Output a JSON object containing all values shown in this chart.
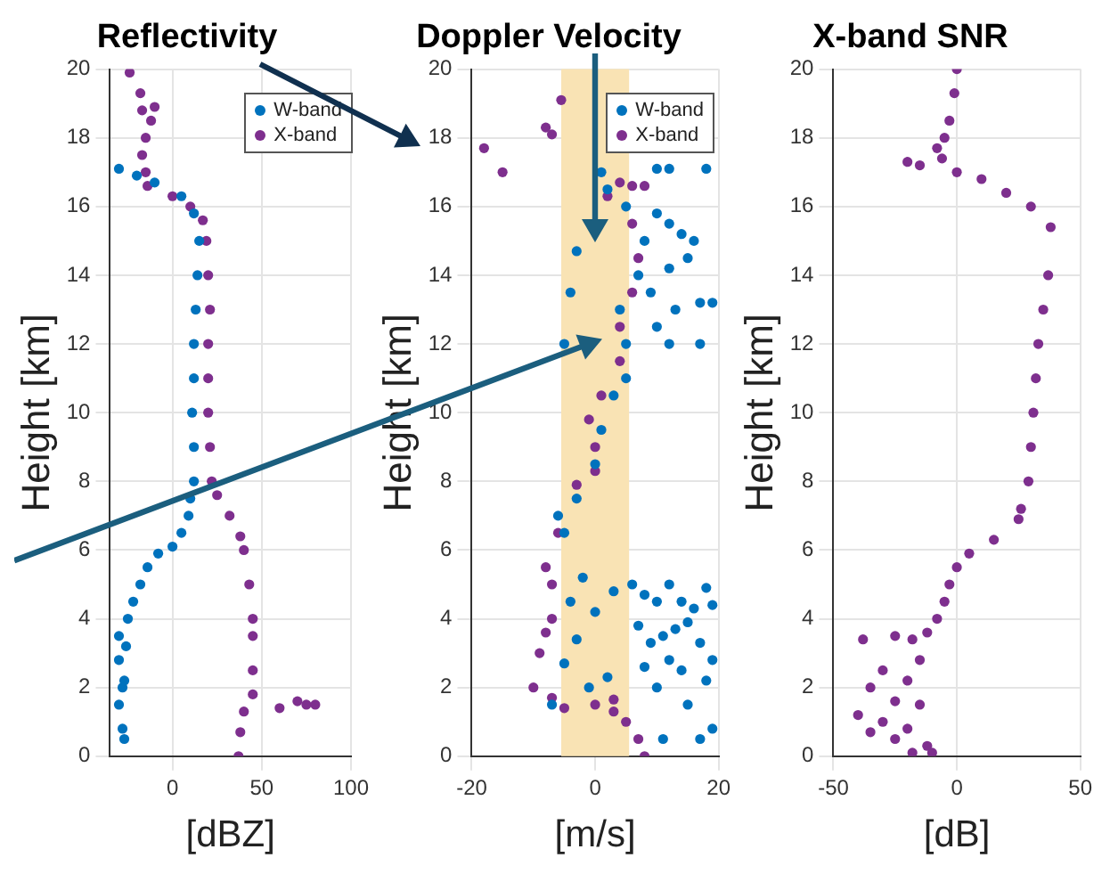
{
  "chart_data": [
    {
      "type": "scatter",
      "title": "Reflectivity",
      "xlabel": "[dBZ]",
      "ylabel": "Height [km]",
      "xlim": [
        -35,
        100
      ],
      "xticks": [
        0,
        50,
        100
      ],
      "ylim": [
        0,
        20
      ],
      "yticks": [
        0,
        2,
        4,
        6,
        8,
        10,
        12,
        14,
        16,
        18,
        20
      ],
      "grid": true,
      "legend": "top right",
      "marker": "circle",
      "series": [
        {
          "name": "W-band",
          "color": "#0072bd",
          "type": "scatter",
          "x": [
            -27,
            -28,
            -30,
            -28,
            -27,
            -30,
            -26,
            -30,
            -25,
            -22,
            -18,
            -14,
            -8,
            0,
            5,
            9,
            10,
            12,
            12,
            11,
            12,
            12,
            13,
            14,
            15,
            12,
            5,
            -10,
            -20,
            -30
          ],
          "values": [
            0.5,
            0.8,
            1.5,
            2,
            2.2,
            2.8,
            3.2,
            3.5,
            4,
            4.5,
            5,
            5.5,
            5.9,
            6.1,
            6.5,
            7,
            7.5,
            8,
            9,
            10,
            11,
            12,
            13,
            14,
            15,
            15.8,
            16.3,
            16.7,
            16.9,
            17.1
          ]
        },
        {
          "name": "X-band",
          "color": "#7e2f8e",
          "type": "scatter",
          "x": [
            37,
            38,
            40,
            60,
            75,
            80,
            70,
            45,
            45,
            45,
            45,
            43,
            40,
            38,
            32,
            25,
            22,
            21,
            20,
            20,
            20,
            21,
            20,
            19,
            17,
            10,
            0,
            -14,
            -15,
            -17,
            -15,
            -12,
            -17,
            -10,
            -18,
            -24
          ],
          "values": [
            0,
            0.7,
            1.3,
            1.4,
            1.5,
            1.5,
            1.6,
            1.8,
            2.5,
            3.5,
            4,
            5,
            6,
            6.4,
            7,
            7.6,
            8,
            9,
            10,
            11,
            12,
            13,
            14,
            15,
            15.6,
            16,
            16.3,
            16.6,
            17,
            17.5,
            18,
            18.5,
            18.8,
            18.9,
            19.3,
            19.9
          ]
        }
      ]
    },
    {
      "type": "scatter",
      "title": "Doppler Velocity",
      "xlabel": "[m/s]",
      "ylabel": "Height [km]",
      "xlim": [
        -20,
        20
      ],
      "xticks": [
        -20,
        0,
        20
      ],
      "ylim": [
        0,
        20
      ],
      "yticks": [
        0,
        2,
        4,
        6,
        8,
        10,
        12,
        14,
        16,
        18,
        20
      ],
      "grid": true,
      "legend": "top right",
      "marker": "circle",
      "bands": [
        {
          "axis": "x",
          "from": -5.5,
          "to": 5.5,
          "color": "#f9e3b4"
        }
      ],
      "series": [
        {
          "name": "W-band",
          "color": "#0072bd",
          "type": "scatter",
          "x": [
            -5,
            -6,
            -3,
            0,
            1,
            3,
            5,
            5,
            4,
            7,
            8,
            5,
            1,
            2,
            10,
            12,
            18,
            10,
            12,
            14,
            16,
            15,
            12,
            9,
            13,
            17,
            19,
            10,
            12,
            17,
            -5,
            -4,
            -3,
            -4,
            -2,
            0,
            3,
            6,
            8,
            10,
            12,
            14,
            16,
            18,
            19,
            7,
            9,
            11,
            13,
            15,
            17,
            19,
            12,
            14,
            8,
            10,
            18,
            15,
            2,
            -3,
            -5,
            -7,
            11,
            17,
            19,
            -1
          ],
          "values": [
            6.5,
            7,
            7.5,
            8.5,
            9.5,
            10.5,
            11,
            12,
            13,
            14,
            15,
            16,
            17,
            16.5,
            17.1,
            17.1,
            17.1,
            15.8,
            15.5,
            15.2,
            15,
            14.5,
            14.2,
            13.5,
            13,
            13.2,
            13.2,
            12.5,
            12,
            12,
            12,
            13.5,
            14.7,
            4.5,
            5.2,
            4.2,
            4.8,
            5,
            4.7,
            4.5,
            5,
            4.5,
            4.3,
            4.9,
            4.4,
            3.8,
            3.3,
            3.5,
            3.7,
            3.9,
            3.3,
            2.8,
            2.8,
            2.5,
            2.6,
            2,
            2.2,
            1.5,
            2.3,
            3.4,
            2.7,
            1.5,
            0.5,
            0.5,
            0.8,
            2
          ]
        },
        {
          "name": "X-band",
          "color": "#7e2f8e",
          "type": "scatter",
          "x": [
            8,
            7,
            5,
            3,
            -5,
            0,
            3,
            -7,
            -10,
            -9,
            -8,
            -7,
            -7,
            -8,
            -6,
            -3,
            0,
            0,
            -1,
            1,
            4,
            4,
            6,
            7,
            6,
            2,
            4,
            6,
            8,
            -15,
            -18,
            -7,
            -8,
            -5.5
          ],
          "values": [
            0,
            0.5,
            1,
            1.3,
            1.4,
            1.5,
            1.65,
            1.7,
            2,
            3,
            3.6,
            4,
            5,
            5.5,
            6.5,
            7.9,
            8.3,
            9,
            9.8,
            10.5,
            11.5,
            12.5,
            13.5,
            14.5,
            15.5,
            16.3,
            16.7,
            16.6,
            16.6,
            17,
            17.7,
            18.1,
            18.3,
            19.1
          ]
        }
      ]
    },
    {
      "type": "scatter",
      "title": "X-band SNR",
      "xlabel": "[dB]",
      "ylabel": "Height [km]",
      "xlim": [
        -50,
        50
      ],
      "xticks": [
        -50,
        0,
        50
      ],
      "ylim": [
        0,
        20
      ],
      "yticks": [
        0,
        2,
        4,
        6,
        8,
        10,
        12,
        14,
        16,
        18,
        20
      ],
      "grid": true,
      "marker": "circle",
      "series": [
        {
          "color": "#7e2f8e",
          "type": "scatter",
          "x": [
            0,
            -1,
            -3,
            -5,
            -8,
            -6,
            -20,
            -15,
            0,
            10,
            20,
            30,
            38,
            37,
            35,
            33,
            32,
            31,
            30,
            29,
            26,
            25,
            15,
            5,
            0,
            -3,
            -5,
            -8,
            -12,
            -18,
            -25,
            -38,
            -30,
            -20,
            -15,
            -35,
            -25,
            -40,
            -30,
            -15,
            -20,
            -12,
            -18,
            -25,
            -10,
            -35
          ],
          "values": [
            20,
            19.3,
            18.5,
            18,
            17.7,
            17.4,
            17.3,
            17.2,
            17,
            16.8,
            16.4,
            16,
            15.4,
            14,
            13,
            12,
            11,
            10,
            9,
            8,
            7.2,
            6.9,
            6.3,
            5.9,
            5.5,
            5,
            4.5,
            4,
            3.6,
            3.4,
            3.5,
            3.4,
            2.5,
            2.2,
            2.8,
            2,
            1.6,
            1.2,
            1,
            1.5,
            0.8,
            0.3,
            0.1,
            0.5,
            0.1,
            0.7
          ]
        }
      ]
    }
  ]
}
